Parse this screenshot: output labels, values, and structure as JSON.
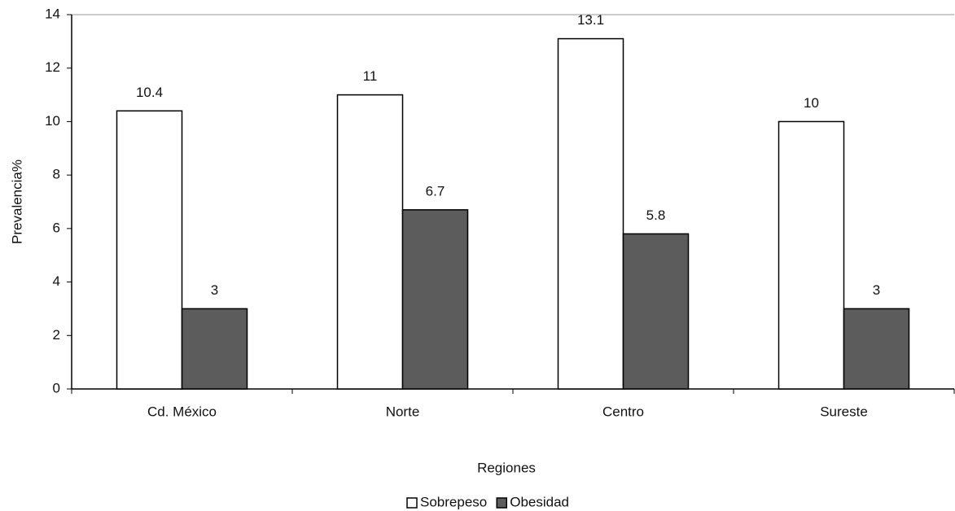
{
  "chart_data": {
    "type": "bar",
    "y_axis_label": "Prevalencia%",
    "x_axis_label": "Regiones",
    "categories": [
      "Cd. México",
      "Norte",
      "Centro",
      "Sureste"
    ],
    "series": [
      {
        "name": "Sobrepeso",
        "color": "#ffffff",
        "values": [
          10.4,
          11,
          13.1,
          10
        ]
      },
      {
        "name": "Obesidad",
        "color": "#5c5c5c",
        "values": [
          3,
          6.7,
          5.8,
          3
        ]
      }
    ],
    "ylim": [
      0,
      14
    ],
    "yticks": [
      0,
      2,
      4,
      6,
      8,
      10,
      12,
      14
    ],
    "legend": "bottom"
  }
}
